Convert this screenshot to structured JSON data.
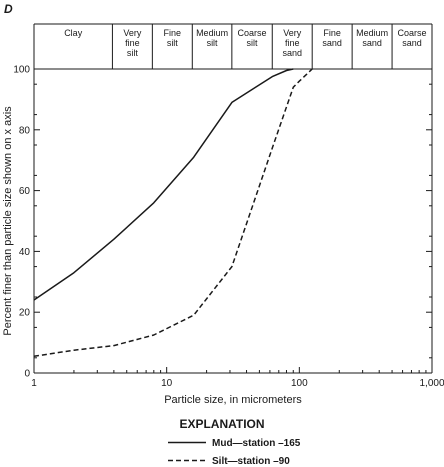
{
  "chart_data": {
    "type": "line",
    "panel_label": "D",
    "xlabel": "Particle size, in micrometers",
    "ylabel": "Percent finer than particle size shown on x axis",
    "x_scale": "log",
    "xlim": [
      1,
      1000
    ],
    "ylim": [
      0,
      100
    ],
    "x_ticks": [
      1,
      10,
      100,
      1000
    ],
    "x_tick_labels": [
      "1",
      "10",
      "100",
      "1,000"
    ],
    "y_ticks": [
      0,
      20,
      40,
      60,
      80,
      100
    ],
    "y_tick_labels": [
      "0",
      "20",
      "40",
      "60",
      "80",
      "100"
    ],
    "size_classes": [
      {
        "lines": [
          "Clay"
        ],
        "from": 1,
        "to": 3.9
      },
      {
        "lines": [
          "Very",
          "fine",
          "silt"
        ],
        "from": 3.9,
        "to": 7.8
      },
      {
        "lines": [
          "Fine",
          "silt"
        ],
        "from": 7.8,
        "to": 15.6
      },
      {
        "lines": [
          "Medium",
          "silt"
        ],
        "from": 15.6,
        "to": 31
      },
      {
        "lines": [
          "Coarse",
          "silt"
        ],
        "from": 31,
        "to": 62.5
      },
      {
        "lines": [
          "Very",
          "fine",
          "sand"
        ],
        "from": 62.5,
        "to": 125
      },
      {
        "lines": [
          "Fine",
          "sand"
        ],
        "from": 125,
        "to": 250
      },
      {
        "lines": [
          "Medium",
          "sand"
        ],
        "from": 250,
        "to": 500
      },
      {
        "lines": [
          "Coarse",
          "sand"
        ],
        "from": 500,
        "to": 1000
      }
    ],
    "series": [
      {
        "name": "Mud—station –165",
        "style": "solid",
        "x": [
          1,
          2,
          4,
          8,
          16,
          31,
          62.5,
          80,
          90
        ],
        "y": [
          24,
          33,
          44,
          56,
          71,
          89,
          97.5,
          99.5,
          100
        ]
      },
      {
        "name": "Silt—station –90",
        "style": "dashed",
        "x": [
          1,
          2,
          4,
          8,
          16,
          31,
          62.5,
          90,
          100,
          125
        ],
        "y": [
          5.5,
          7.5,
          9,
          12.5,
          19,
          35,
          74,
          94,
          96,
          100
        ]
      }
    ],
    "legend": {
      "title": "EXPLANATION",
      "placement": "bottom-center"
    }
  }
}
